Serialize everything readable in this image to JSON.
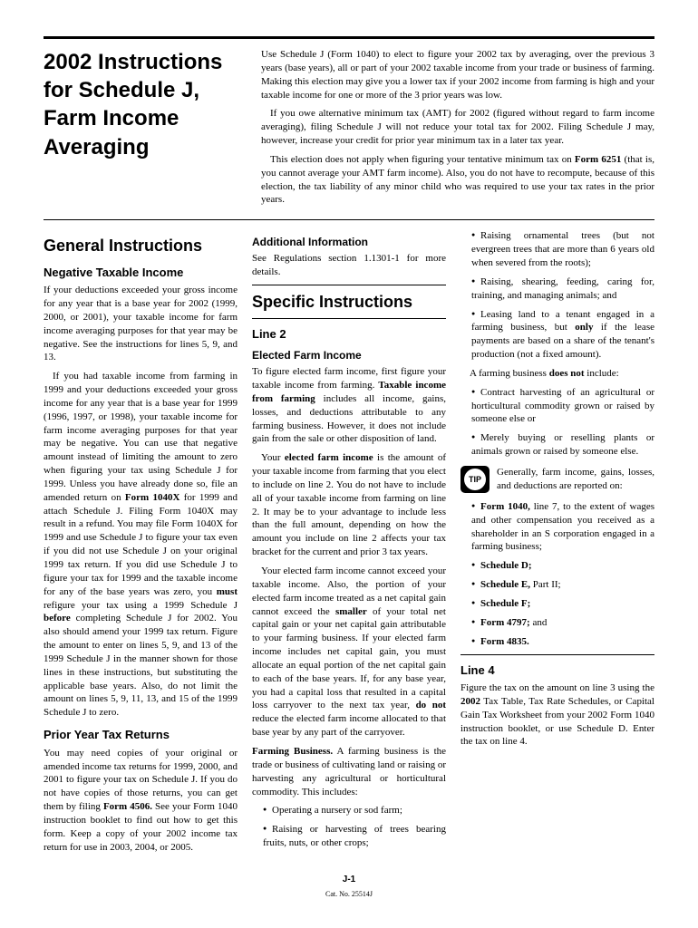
{
  "title": "2002 Instructions for Schedule J, Farm Income Averaging",
  "intro": {
    "p1": "Use Schedule J (Form 1040) to elect to figure your 2002 tax by averaging, over the previous 3 years (base years), all or part of your 2002 taxable income from your trade or business of farming. Making this election may give you a lower tax if your 2002 income from farming is high and your taxable income for one or more of the 3 prior years was low.",
    "p2": "If you owe alternative minimum tax (AMT) for 2002 (figured without regard to farm income averaging), filing Schedule J will not reduce your total tax for 2002. Filing Schedule J may, however, increase your credit for prior year minimum tax in a later tax year.",
    "p3_a": "This election does not apply when figuring your tentative minimum tax on ",
    "p3_b": "Form 6251",
    "p3_c": " (that is, you cannot average your AMT farm income). Also, you do not have to recompute, because of this election, the tax liability of any minor child who was required to use your tax rates in the prior years."
  },
  "col1": {
    "h2": "General Instructions",
    "h3a": "Negative Taxable Income",
    "p1": "If your deductions exceeded your gross income for any year that is a base year for 2002 (1999, 2000, or 2001), your taxable income for farm income averaging purposes for that year may be negative. See the instructions for lines 5, 9, and 13.",
    "p2_a": "If you had taxable income from farming in 1999 and your deductions exceeded your gross income for any year that is a base year for 1999 (1996, 1997, or 1998), your taxable income for farm income averaging purposes for that year may be negative. You can use that negative amount instead of limiting the amount to zero when figuring your tax using Schedule J for 1999. Unless you have already done so, file an amended return on ",
    "p2_b": "Form 1040X",
    "p2_c": " for 1999 and attach Schedule J. Filing Form 1040X may result in a refund. You may file Form 1040X for 1999 and use Schedule J to figure your tax even if you did not use Schedule J on your original 1999 tax return. If you did use Schedule J to figure your tax for 1999 and the taxable income for any of the base years was zero, you ",
    "p2_d": "must",
    "p2_e": " refigure your tax using a 1999 Schedule J ",
    "p2_f": "before",
    "p2_g": " completing Schedule J for 2002. You also should amend your 1999 tax return. Figure the amount to enter on lines 5, 9, and 13 of the 1999 Schedule J in the manner shown for those lines in these instructions, but substituting the applicable base years. Also, do not limit the amount on lines 5, 9, 11, 13, and 15 of the 1999 Schedule J to zero.",
    "h3b": "Prior Year Tax Returns",
    "p3_a": "You may need copies of your original or amended income tax returns for 1999, 2000, and 2001 to figure your tax on Schedule J. If you do not have copies of those returns, you can get them by filing ",
    "p3_b": "Form 4506.",
    "p3_c": " See your Form 1040 instruction booklet to find out how to get this form. Keep a copy of your 2002 income tax return for use in 2003, 2004, or 2005."
  },
  "col2": {
    "h4a": "Additional Information",
    "p1": "See Regulations section 1.1301-1 for more details.",
    "h2": "Specific Instructions",
    "h3a": "Line 2",
    "h4b": "Elected Farm Income",
    "p2_a": "To figure elected farm income, first figure your taxable income from farming. ",
    "p2_b": "Taxable income from farming",
    "p2_c": " includes all income, gains, losses, and deductions attributable to any farming business. However, it does not include gain from the sale or other disposition of land.",
    "p3_a": "Your ",
    "p3_b": "elected farm income",
    "p3_c": " is the amount of your taxable income from farming that you elect to include on line 2. You do not have to include all of your taxable income from farming on line 2. It may be to your advantage to include less than the full amount, depending on how the amount you include on line 2 affects your tax bracket for the current and prior 3 tax years.",
    "p4_a": "Your elected farm income cannot exceed your taxable income. Also, the portion of your elected farm income treated as a net capital gain cannot exceed the ",
    "p4_b": "smaller",
    "p4_c": " of your total net capital gain or your net capital gain attributable to your farming business. If your elected farm income includes net capital gain, you must allocate an equal portion of the net capital gain to each of the base years. If, for any base year, you had a capital loss that resulted in a capital loss carryover to the next tax year, ",
    "p4_d": "do not",
    "p4_e": " reduce the elected farm income allocated to that base year by any part of the carryover.",
    "p5_a": "Farming Business.",
    "p5_b": " A farming business is the trade or business of cultivating land or raising or harvesting any agricultural or horticultural commodity. This includes:",
    "b1": "Operating a nursery or sod farm;",
    "b2": "Raising or harvesting of trees bearing fruits, nuts, or other crops;"
  },
  "col3": {
    "b1": "Raising ornamental trees (but not evergreen trees that are more than 6 years old when severed from the roots);",
    "b2": "Raising, shearing, feeding, caring for, training, and managing animals; and",
    "b3_a": "Leasing land to a tenant engaged in a farming business, but ",
    "b3_b": "only",
    "b3_c": " if the lease payments are based on a share of the tenant's production (not a fixed amount).",
    "p1_a": "A farming business ",
    "p1_b": "does not",
    "p1_c": " include:",
    "b4": "Contract harvesting of an agricultural or horticultural commodity grown or raised by someone else or",
    "b5": "Merely buying or reselling plants or animals grown or raised by someone else.",
    "tip_label": "TIP",
    "tip": "Generally, farm income, gains, losses, and deductions are reported on:",
    "b6_a": "Form 1040,",
    "b6_b": " line 7, to the extent of wages and other compensation you received as a shareholder in an S corporation engaged in a farming business;",
    "b7": "Schedule D;",
    "b8_a": "Schedule E,",
    "b8_b": " Part II;",
    "b9": "Schedule F;",
    "b10_a": "Form 4797;",
    "b10_b": " and",
    "b11": "Form 4835.",
    "h3a": "Line 4",
    "p2_a": "Figure the tax on the amount on line 3 using the ",
    "p2_b": "2002",
    "p2_c": " Tax Table, Tax Rate Schedules, or Capital Gain Tax Worksheet from your 2002 Form 1040 instruction booklet, or use Schedule D. Enter the tax on line 4."
  },
  "footer": {
    "page": "J-1",
    "cat": "Cat. No. 25514J"
  }
}
